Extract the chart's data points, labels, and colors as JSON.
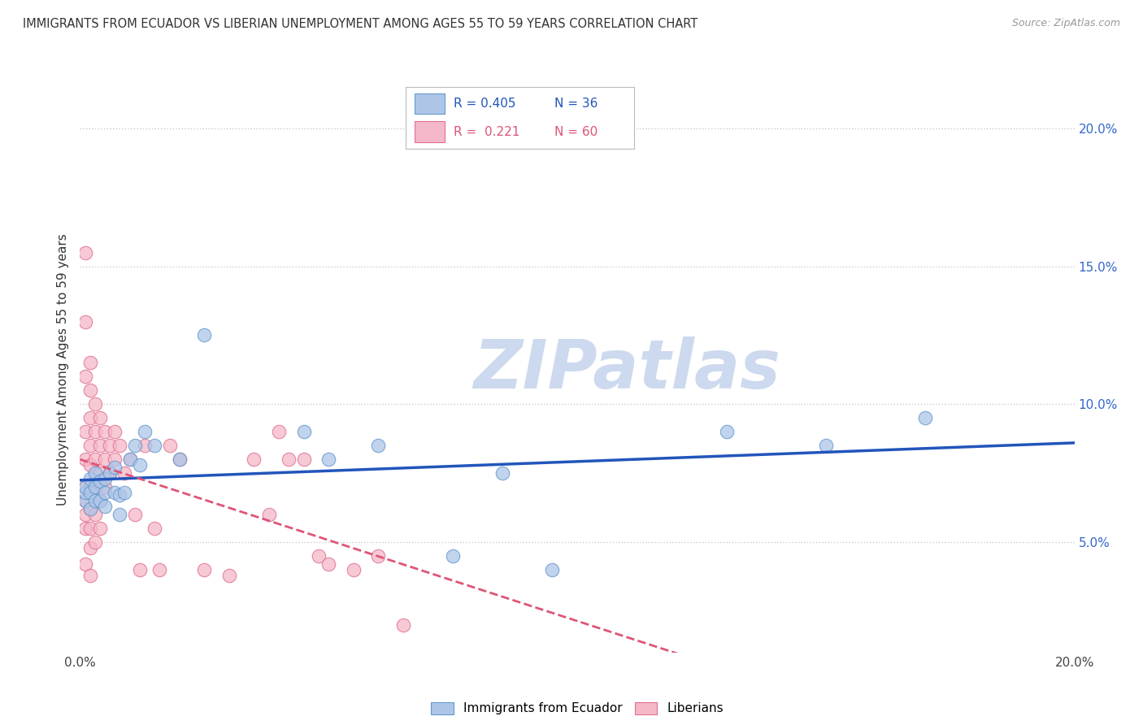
{
  "title": "IMMIGRANTS FROM ECUADOR VS LIBERIAN UNEMPLOYMENT AMONG AGES 55 TO 59 YEARS CORRELATION CHART",
  "source": "Source: ZipAtlas.com",
  "ylabel": "Unemployment Among Ages 55 to 59 years",
  "xlim": [
    0.0,
    0.2
  ],
  "ylim": [
    0.01,
    0.215
  ],
  "right_yticks": [
    0.05,
    0.1,
    0.15,
    0.2
  ],
  "right_ytick_labels": [
    "5.0%",
    "10.0%",
    "15.0%",
    "20.0%"
  ],
  "grid_yticks": [
    0.05,
    0.1,
    0.15,
    0.2
  ],
  "ecuador_color": "#adc6e8",
  "ecuador_edge": "#6699cc",
  "liberian_color": "#f5b8c8",
  "liberian_edge": "#e07090",
  "line_blue": "#2255bb",
  "line_pink": "#dd5577",
  "legend_R_ecuador": "R = 0.405",
  "legend_N_ecuador": "N = 36",
  "legend_R_liberian": "R =  0.221",
  "legend_N_liberian": "N = 60",
  "background_color": "#ffffff",
  "watermark_text": "ZIPatlas",
  "watermark_color": "#ccd9ee",
  "ecuador_x": [
    0.001,
    0.001,
    0.001,
    0.002,
    0.002,
    0.002,
    0.003,
    0.003,
    0.003,
    0.004,
    0.004,
    0.005,
    0.005,
    0.005,
    0.006,
    0.007,
    0.007,
    0.008,
    0.008,
    0.009,
    0.01,
    0.011,
    0.012,
    0.013,
    0.015,
    0.02,
    0.025,
    0.045,
    0.05,
    0.06,
    0.075,
    0.085,
    0.095,
    0.13,
    0.15,
    0.17
  ],
  "ecuador_y": [
    0.065,
    0.068,
    0.07,
    0.062,
    0.068,
    0.073,
    0.065,
    0.07,
    0.075,
    0.065,
    0.072,
    0.063,
    0.068,
    0.073,
    0.075,
    0.068,
    0.077,
    0.06,
    0.067,
    0.068,
    0.08,
    0.085,
    0.078,
    0.09,
    0.085,
    0.08,
    0.125,
    0.09,
    0.08,
    0.085,
    0.045,
    0.075,
    0.04,
    0.09,
    0.085,
    0.095
  ],
  "liberian_x": [
    0.001,
    0.001,
    0.001,
    0.001,
    0.001,
    0.001,
    0.001,
    0.001,
    0.001,
    0.001,
    0.002,
    0.002,
    0.002,
    0.002,
    0.002,
    0.002,
    0.002,
    0.002,
    0.002,
    0.002,
    0.003,
    0.003,
    0.003,
    0.003,
    0.003,
    0.003,
    0.004,
    0.004,
    0.004,
    0.004,
    0.004,
    0.005,
    0.005,
    0.005,
    0.006,
    0.006,
    0.007,
    0.007,
    0.008,
    0.009,
    0.01,
    0.011,
    0.012,
    0.013,
    0.015,
    0.016,
    0.018,
    0.02,
    0.025,
    0.03,
    0.035,
    0.038,
    0.04,
    0.042,
    0.045,
    0.048,
    0.05,
    0.055,
    0.06,
    0.065
  ],
  "liberian_y": [
    0.155,
    0.13,
    0.11,
    0.09,
    0.08,
    0.07,
    0.065,
    0.06,
    0.055,
    0.042,
    0.115,
    0.105,
    0.095,
    0.085,
    0.078,
    0.07,
    0.062,
    0.055,
    0.048,
    0.038,
    0.1,
    0.09,
    0.08,
    0.07,
    0.06,
    0.05,
    0.095,
    0.085,
    0.075,
    0.065,
    0.055,
    0.09,
    0.08,
    0.07,
    0.085,
    0.075,
    0.09,
    0.08,
    0.085,
    0.075,
    0.08,
    0.06,
    0.04,
    0.085,
    0.055,
    0.04,
    0.085,
    0.08,
    0.04,
    0.038,
    0.08,
    0.06,
    0.09,
    0.08,
    0.08,
    0.045,
    0.042,
    0.04,
    0.045,
    0.02
  ]
}
